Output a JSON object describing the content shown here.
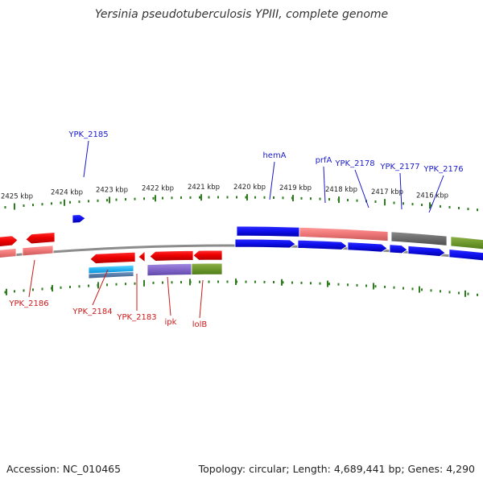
{
  "title": "Yersinia pseudotuberculosis YPIII, complete genome",
  "footer": {
    "accession": "Accession: NC_010465",
    "summary": "Topology: circular; Length: 4,689,441 bp; Genes: 4,290"
  },
  "colors": {
    "forward_label": "#1a1acc",
    "reverse_label": "#cc1a1a",
    "tick": "#2e7d1e",
    "backbone": "#8c8c8c",
    "ruler_text": "#222222"
  },
  "ruler": {
    "ticks": [
      "2425 kbp",
      "2424 kbp",
      "2423 kbp",
      "2422 kbp",
      "2421 kbp",
      "2420 kbp",
      "2419 kbp",
      "2418 kbp",
      "2417 kbp",
      "2416 kbp"
    ]
  },
  "forward_labels": [
    {
      "name": "fwd-label-ypk-2185",
      "text": "YPK_2185"
    },
    {
      "name": "fwd-label-hema",
      "text": "hemA"
    },
    {
      "name": "fwd-label-prfa",
      "text": "prfA"
    },
    {
      "name": "fwd-label-ypk-2178",
      "text": "YPK_2178"
    },
    {
      "name": "fwd-label-ypk-2177",
      "text": "YPK_2177"
    },
    {
      "name": "fwd-label-ypk-2176",
      "text": "YPK_2176"
    }
  ],
  "reverse_labels": [
    {
      "name": "rev-label-ypk-2186",
      "text": "YPK_2186"
    },
    {
      "name": "rev-label-ypk-2184",
      "text": "YPK_2184"
    },
    {
      "name": "rev-label-ypk-2183",
      "text": "YPK_2183"
    },
    {
      "name": "rev-label-ipk",
      "text": "ipk"
    },
    {
      "name": "rev-label-lolb",
      "text": "lolB"
    }
  ]
}
